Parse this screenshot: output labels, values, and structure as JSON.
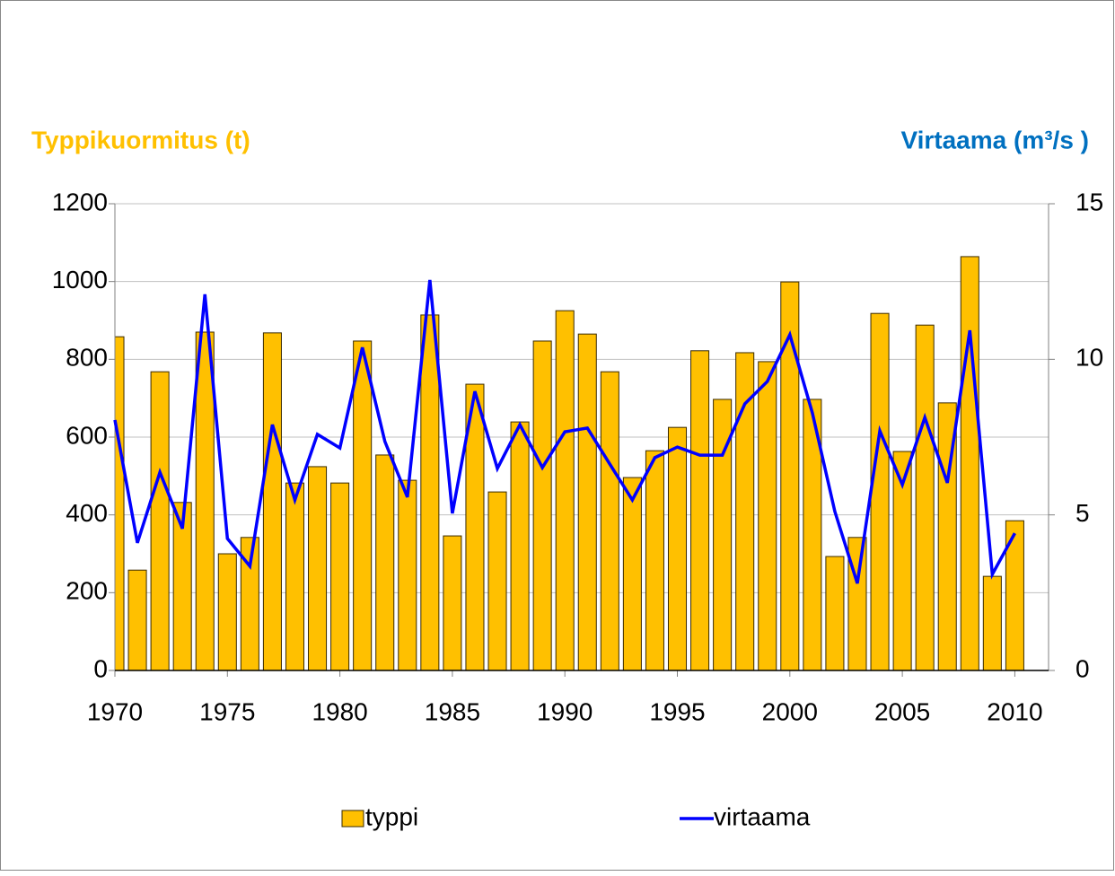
{
  "chart_data": {
    "type": "bar_line",
    "ylabel": "Typpikuormitus (t)",
    "y2label": "Virtaama (m³/s )",
    "x": [
      1970,
      1971,
      1972,
      1973,
      1974,
      1975,
      1976,
      1977,
      1978,
      1979,
      1980,
      1981,
      1982,
      1983,
      1984,
      1985,
      1986,
      1987,
      1988,
      1989,
      1990,
      1991,
      1992,
      1993,
      1994,
      1995,
      1996,
      1997,
      1998,
      1999,
      2000,
      2001,
      2002,
      2003,
      2004,
      2005,
      2006,
      2007,
      2008,
      2009,
      2010
    ],
    "series": [
      {
        "name": "typpi",
        "type": "bar",
        "color": "#ffc000",
        "values": [
          858,
          258,
          768,
          432,
          870,
          300,
          342,
          868,
          482,
          524,
          482,
          847,
          554,
          489,
          914,
          346,
          736,
          459,
          639,
          847,
          925,
          865,
          768,
          496,
          565,
          625,
          822,
          697,
          817,
          794,
          999,
          697,
          293,
          342,
          918,
          563,
          888,
          688,
          1064,
          242,
          385
        ]
      },
      {
        "name": "virtaama",
        "type": "line",
        "axis": "y2",
        "color": "#0000ff",
        "values": [
          8.05,
          4.1,
          6.37,
          4.56,
          12.09,
          4.24,
          3.35,
          7.9,
          5.48,
          7.59,
          7.15,
          10.38,
          7.36,
          5.57,
          12.55,
          5.05,
          8.97,
          6.49,
          7.9,
          6.52,
          7.67,
          7.79,
          6.63,
          5.48,
          6.84,
          7.18,
          6.92,
          6.92,
          8.57,
          9.29,
          10.79,
          8.28,
          5.11,
          2.8,
          7.7,
          5.97,
          8.13,
          6.03,
          10.93,
          3.09,
          4.41
        ]
      }
    ],
    "xlim": [
      1970,
      2011.5
    ],
    "xticks": [
      1970,
      1975,
      1980,
      1985,
      1990,
      1995,
      2000,
      2005,
      2010
    ],
    "ylim": [
      0,
      1200
    ],
    "yticks": [
      0,
      200,
      400,
      600,
      800,
      1000,
      1200
    ],
    "y2lim": [
      0,
      15
    ],
    "y2ticks": [
      0,
      5,
      10,
      15
    ],
    "grid": true,
    "legend": "bottom"
  }
}
